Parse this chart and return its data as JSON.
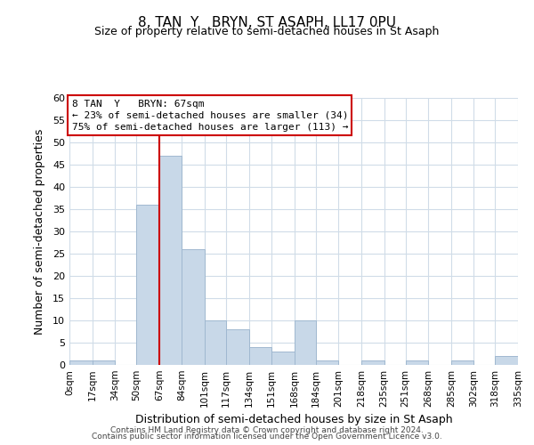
{
  "title": "8, TAN  Y   BRYN, ST ASAPH, LL17 0PU",
  "subtitle": "Size of property relative to semi-detached houses in St Asaph",
  "xlabel": "Distribution of semi-detached houses by size in St Asaph",
  "ylabel": "Number of semi-detached properties",
  "bin_edges": [
    0,
    17,
    34,
    50,
    67,
    84,
    101,
    117,
    134,
    151,
    168,
    184,
    201,
    218,
    235,
    251,
    268,
    285,
    302,
    318,
    335
  ],
  "bin_labels": [
    "0sqm",
    "17sqm",
    "34sqm",
    "50sqm",
    "67sqm",
    "84sqm",
    "101sqm",
    "117sqm",
    "134sqm",
    "151sqm",
    "168sqm",
    "184sqm",
    "201sqm",
    "218sqm",
    "235sqm",
    "251sqm",
    "268sqm",
    "285sqm",
    "302sqm",
    "318sqm",
    "335sqm"
  ],
  "counts": [
    1,
    1,
    0,
    36,
    47,
    26,
    10,
    8,
    4,
    3,
    10,
    1,
    0,
    1,
    0,
    1,
    0,
    1,
    0,
    2
  ],
  "bar_color": "#c8d8e8",
  "bar_edge_color": "#a0b8d0",
  "property_line_x": 67,
  "property_line_color": "#cc0000",
  "annotation_title": "8 TAN  Y   BRYN: 67sqm",
  "annotation_line1": "← 23% of semi-detached houses are smaller (34)",
  "annotation_line2": "75% of semi-detached houses are larger (113) →",
  "annotation_box_color": "#cc0000",
  "ylim": [
    0,
    60
  ],
  "yticks": [
    0,
    5,
    10,
    15,
    20,
    25,
    30,
    35,
    40,
    45,
    50,
    55,
    60
  ],
  "footer1": "Contains HM Land Registry data © Crown copyright and database right 2024.",
  "footer2": "Contains public sector information licensed under the Open Government Licence v3.0.",
  "bg_color": "#ffffff",
  "grid_color": "#d0dce8"
}
